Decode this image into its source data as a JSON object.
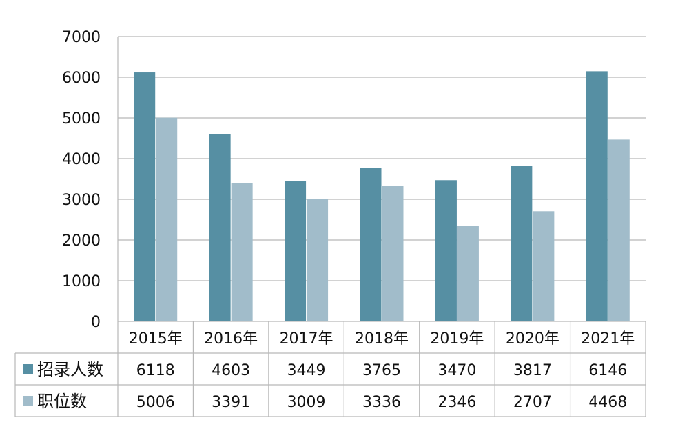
{
  "chart_data": {
    "type": "bar",
    "categories": [
      "2015年",
      "2016年",
      "2017年",
      "2018年",
      "2019年",
      "2020年",
      "2021年"
    ],
    "series": [
      {
        "name": "招录人数",
        "values": [
          6118,
          4603,
          3449,
          3765,
          3470,
          3817,
          6146
        ],
        "color": "#568fa3"
      },
      {
        "name": "职位数",
        "values": [
          5006,
          3391,
          3009,
          3336,
          2346,
          2707,
          4468
        ],
        "color": "#a1bcca"
      }
    ],
    "ylim": [
      0,
      7000
    ],
    "yticks": [
      0,
      1000,
      2000,
      3000,
      4000,
      5000,
      6000,
      7000
    ],
    "grid": true,
    "legend": "data-table"
  }
}
